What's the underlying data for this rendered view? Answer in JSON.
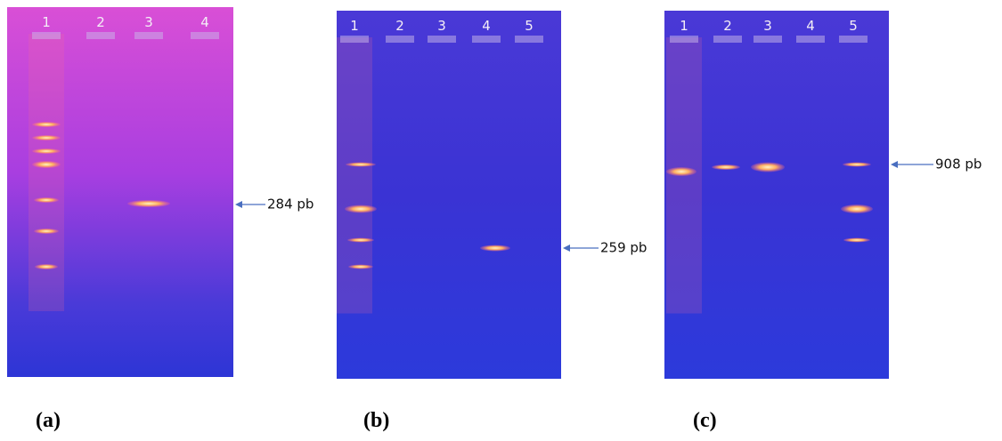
{
  "panels": [
    {
      "lanes": [
        "1",
        "2",
        "3",
        "4"
      ],
      "marker": "284 pb",
      "caption": "(a)"
    },
    {
      "lanes": [
        "1",
        "2",
        "3",
        "4",
        "5"
      ],
      "marker": "259 pb",
      "caption": "(b)"
    },
    {
      "lanes": [
        "1",
        "2",
        "3",
        "4",
        "5"
      ],
      "marker": "908 pb",
      "caption": "(c)"
    }
  ]
}
